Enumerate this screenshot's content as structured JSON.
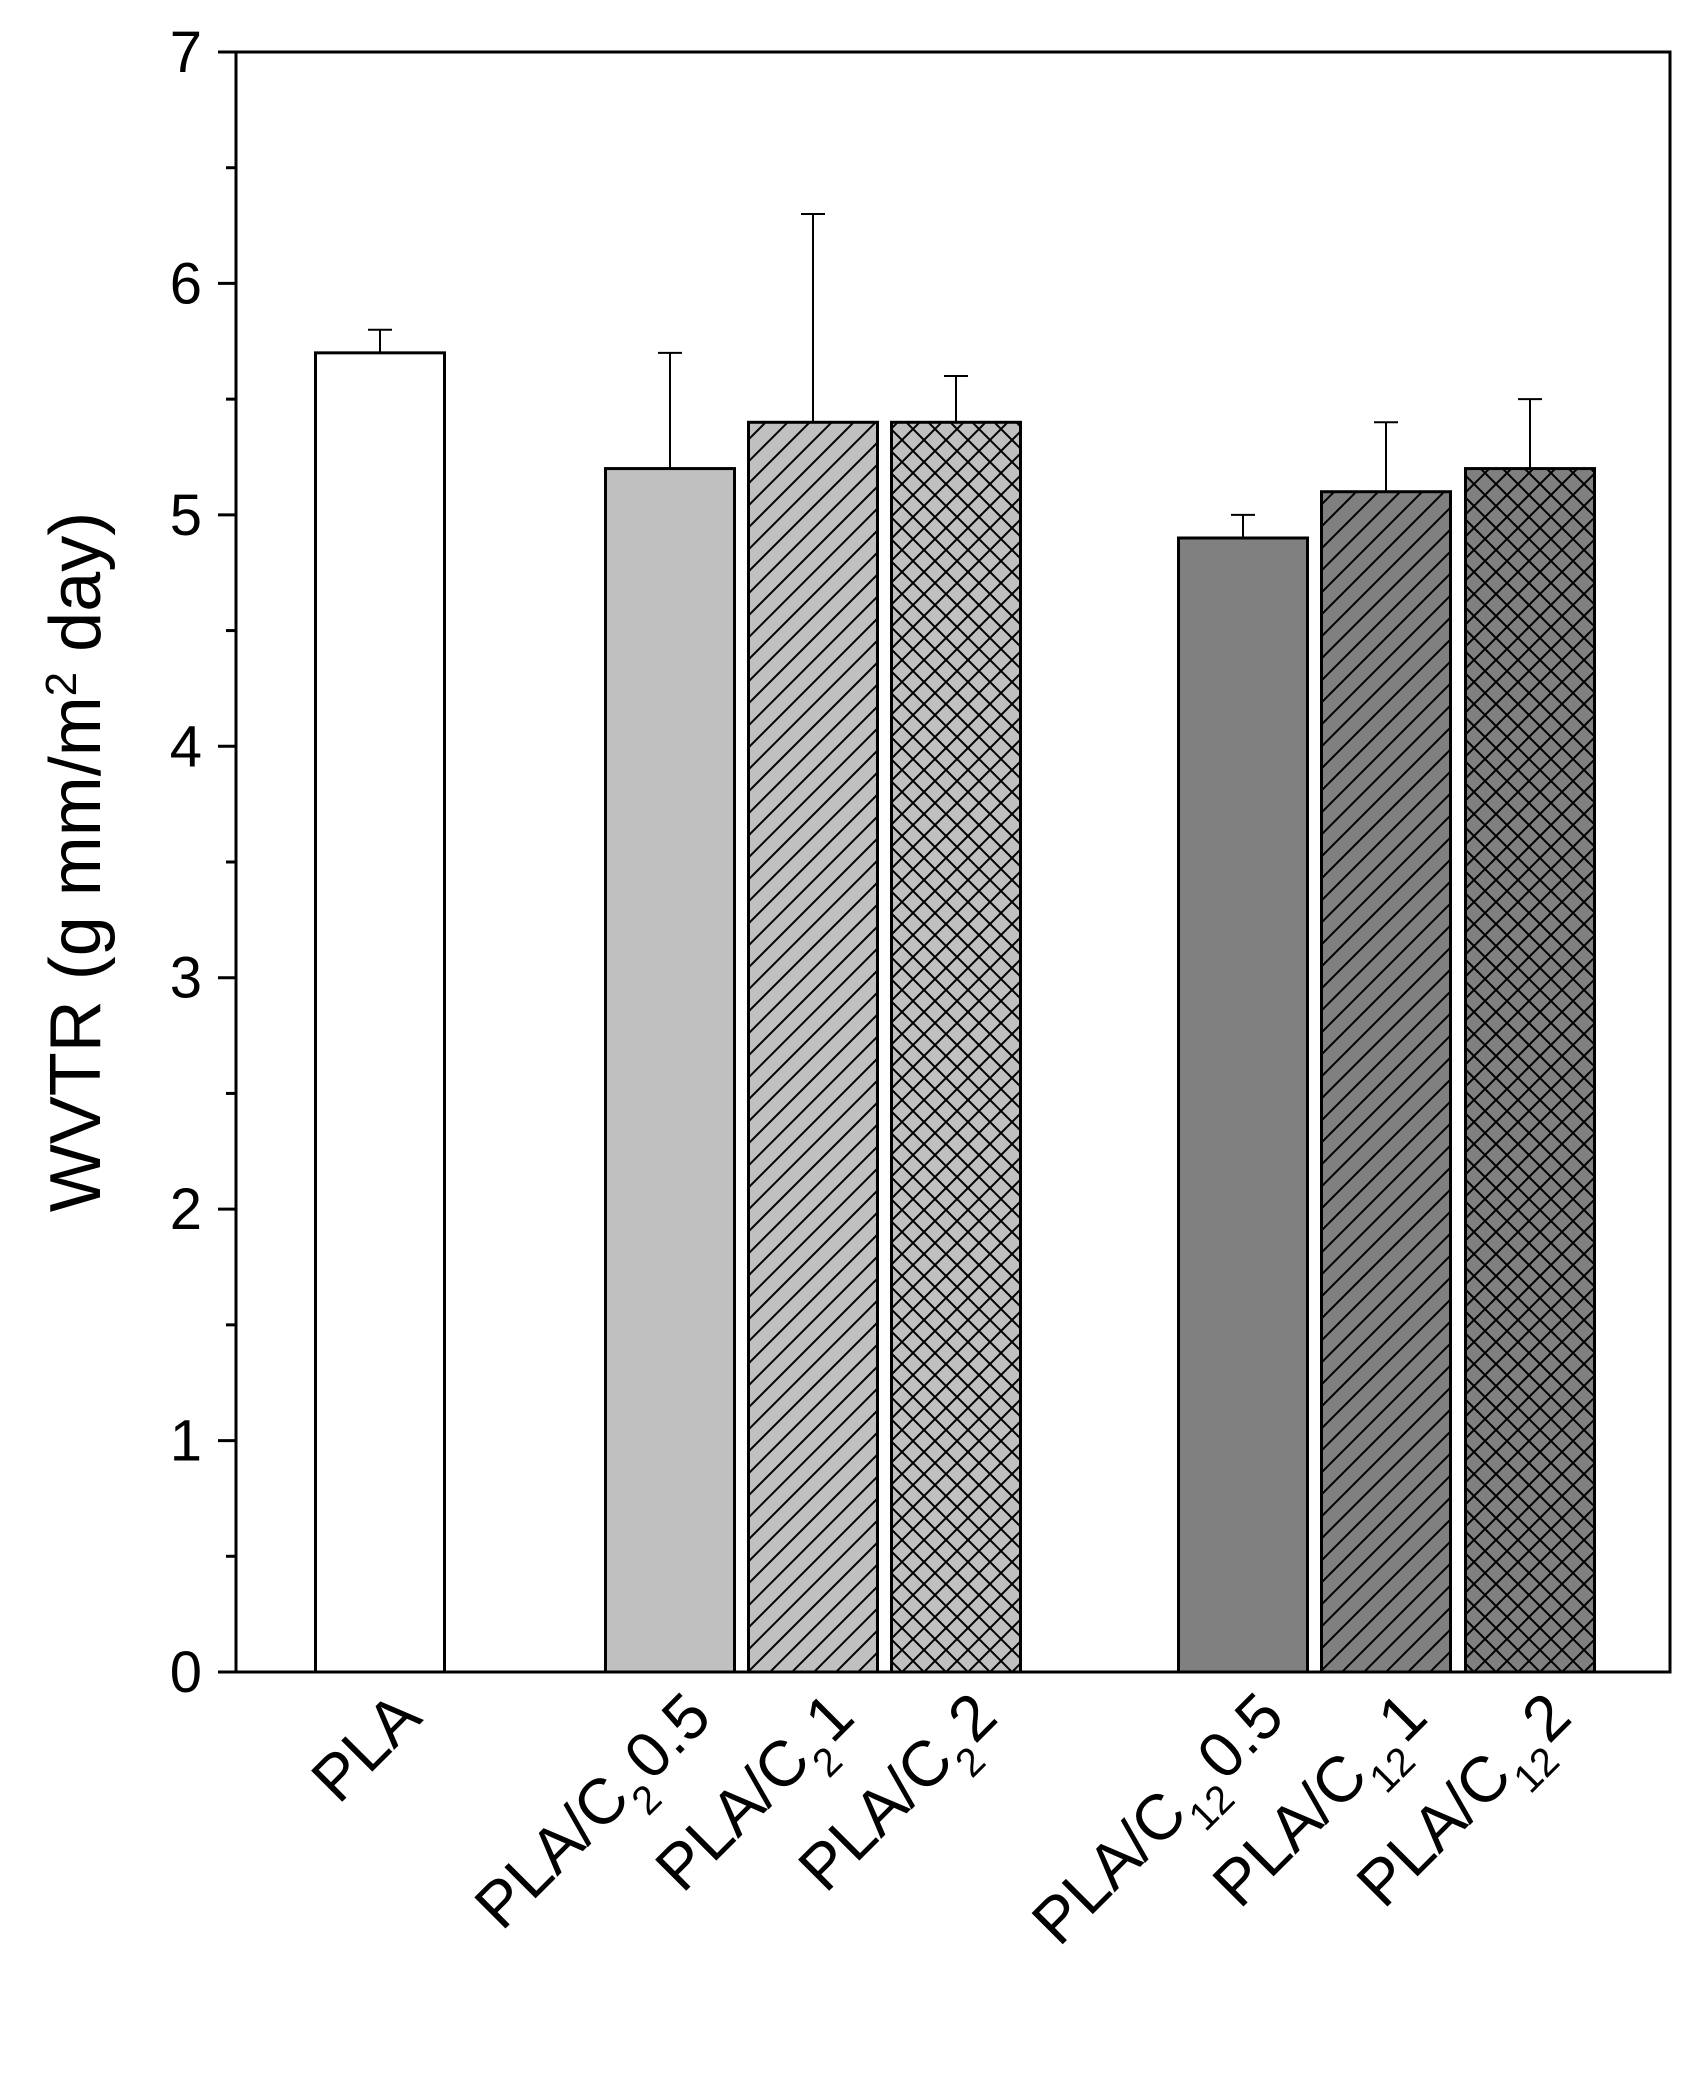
{
  "chart_data": {
    "type": "bar",
    "title": "",
    "xlabel": "",
    "ylabel": "WVTR (g mm/m² day)",
    "ylabel_parts": {
      "pre": "WVTR (g mm/m",
      "sup": "2",
      "post": " day)"
    },
    "ylim": [
      0,
      7
    ],
    "yticks": [
      "0",
      "1",
      "2",
      "3",
      "4",
      "5",
      "6",
      "7"
    ],
    "categories": [
      "PLA",
      "PLA/C2 0.5",
      "PLA/C2 1",
      "PLA/C2 2",
      "PLA/C12 0.5",
      "PLA/C12 1",
      "PLA/C12 2"
    ],
    "category_labels": [
      {
        "main": "PLA",
        "sub": "",
        "tail": ""
      },
      {
        "main": "PLA/C",
        "sub": "2",
        "tail": "0.5"
      },
      {
        "main": "PLA/C",
        "sub": "2",
        "tail": "1"
      },
      {
        "main": "PLA/C",
        "sub": "2",
        "tail": "2"
      },
      {
        "main": "PLA/C",
        "sub": "12",
        "tail": "0.5"
      },
      {
        "main": "PLA/C",
        "sub": "12",
        "tail": "1"
      },
      {
        "main": "PLA/C",
        "sub": "12",
        "tail": "2"
      }
    ],
    "values": [
      5.7,
      5.2,
      5.4,
      5.4,
      4.9,
      5.1,
      5.2
    ],
    "errors": [
      0.1,
      0.5,
      0.9,
      0.2,
      0.1,
      0.3,
      0.3
    ],
    "fills": [
      "#ffffff",
      "#c0c0c0",
      "#c0c0c0",
      "#c0c0c0",
      "#808080",
      "#808080",
      "#808080"
    ],
    "patterns": [
      "none",
      "none",
      "diagonal",
      "crosshatch",
      "none",
      "diagonal",
      "crosshatch"
    ]
  }
}
